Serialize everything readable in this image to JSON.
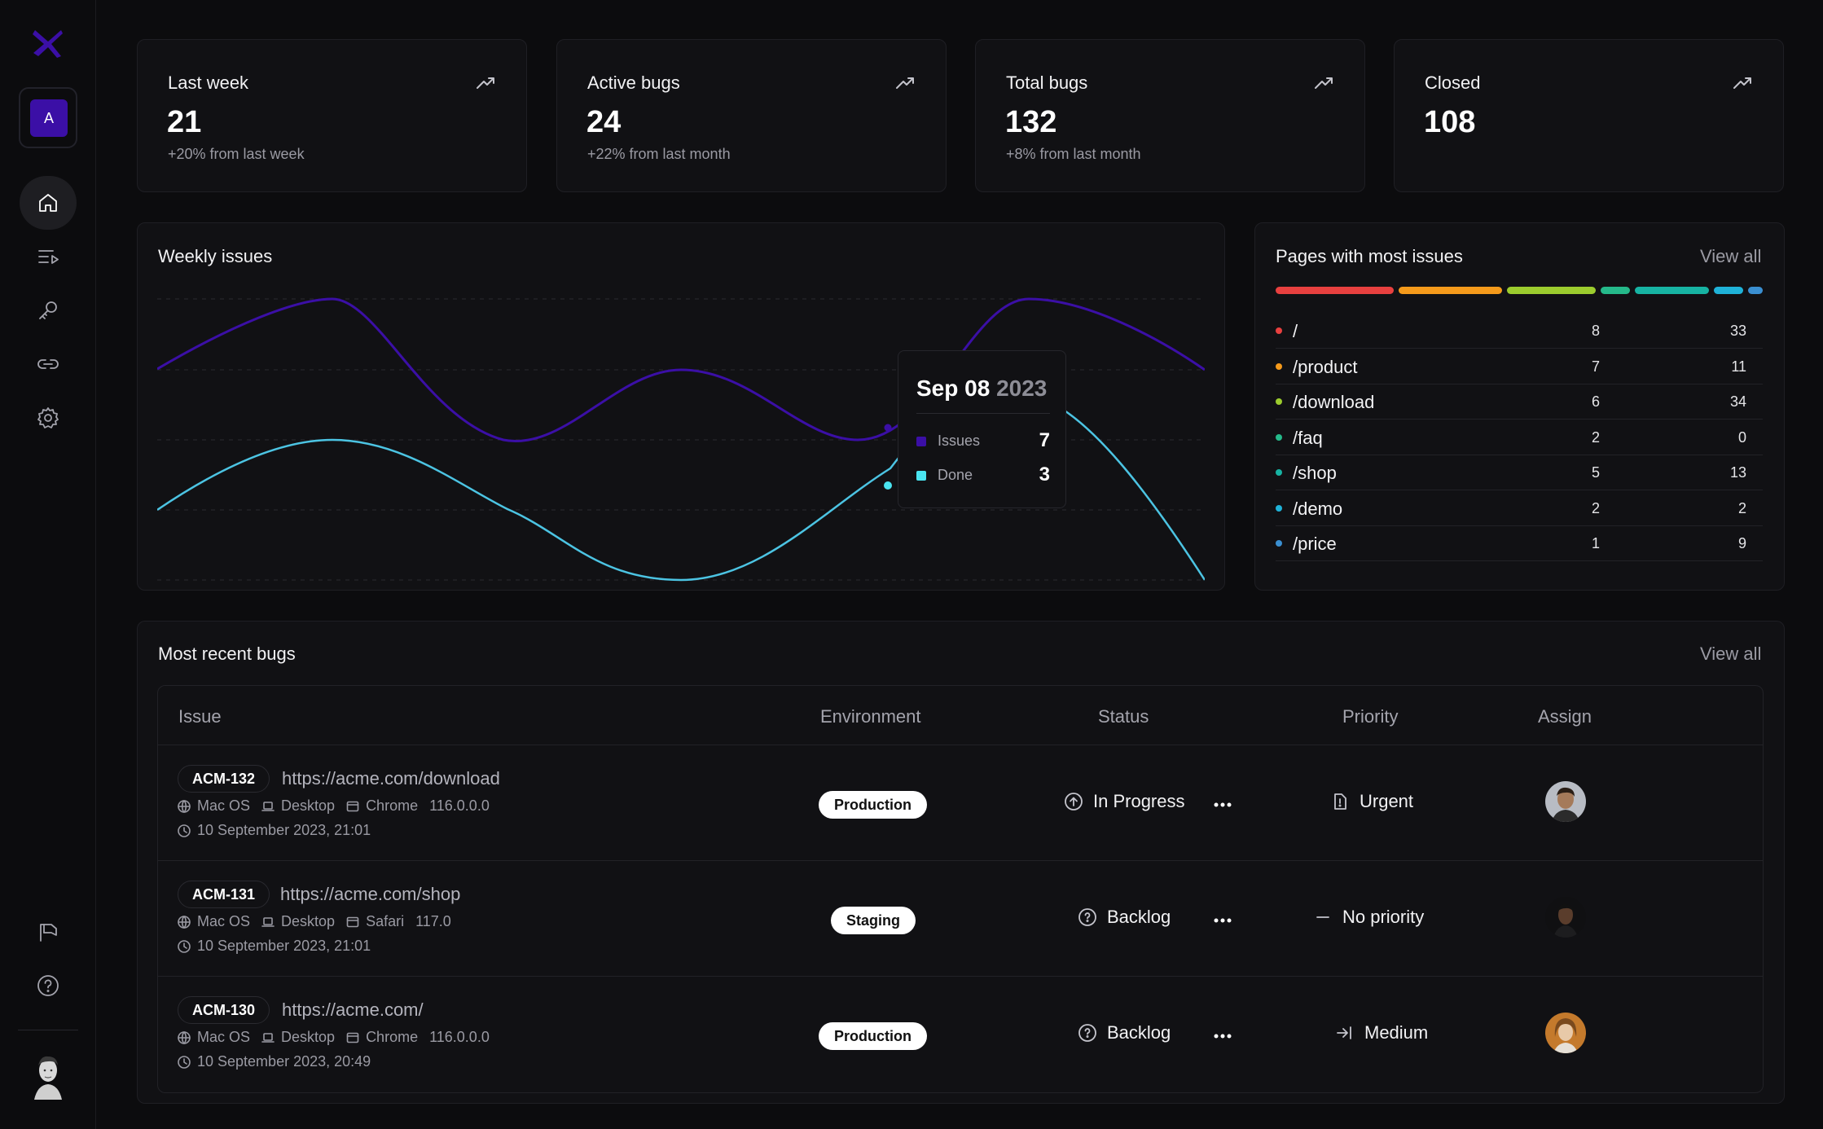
{
  "colors": {
    "accent": "#3b0fa6",
    "issues_line": "#3b0fa6",
    "done_line": "#4cc4e3"
  },
  "sidebar": {
    "workspace_initial": "A",
    "nav": [
      {
        "name": "home-icon",
        "active": true
      },
      {
        "name": "issues-list-icon",
        "active": false
      },
      {
        "name": "key-icon",
        "active": false
      },
      {
        "name": "link-icon",
        "active": false
      },
      {
        "name": "settings-icon",
        "active": false
      }
    ],
    "bottom": [
      {
        "name": "announcement-icon"
      },
      {
        "name": "help-icon"
      }
    ]
  },
  "stats": [
    {
      "title": "Last week",
      "value": "21",
      "sub": "+20% from last week",
      "icon": "trend-up-icon"
    },
    {
      "title": "Active bugs",
      "value": "24",
      "sub": "+22% from last month",
      "icon": "trend-up-icon"
    },
    {
      "title": "Total bugs",
      "value": "132",
      "sub": "+8% from last month",
      "icon": "trend-up-icon"
    },
    {
      "title": "Closed",
      "value": "108",
      "sub": "",
      "icon": "trend-up-icon"
    }
  ],
  "weekly": {
    "title": "Weekly issues",
    "tooltip": {
      "date": "Sep 08",
      "year": "2023",
      "rows": [
        {
          "label": "Issues",
          "value": "7",
          "color": "#3b0fa6"
        },
        {
          "label": "Done",
          "value": "3",
          "color": "#4ae4f0"
        }
      ]
    }
  },
  "pages": {
    "title": "Pages with most issues",
    "view_all": "View all",
    "segments": [
      {
        "color": "#e8403f",
        "share": 0.24
      },
      {
        "color": "#f59a1b",
        "share": 0.21
      },
      {
        "color": "#9ccc2e",
        "share": 0.18
      },
      {
        "color": "#25b98a",
        "share": 0.06
      },
      {
        "color": "#17b3a3",
        "share": 0.15
      },
      {
        "color": "#1fb2d8",
        "share": 0.06
      },
      {
        "color": "#3a8fd1",
        "share": 0.03
      }
    ],
    "rows": [
      {
        "path": "/",
        "a": "8",
        "b": "33",
        "color": "#e8403f"
      },
      {
        "path": "/product",
        "a": "7",
        "b": "11",
        "color": "#f59a1b"
      },
      {
        "path": "/download",
        "a": "6",
        "b": "34",
        "color": "#9ccc2e"
      },
      {
        "path": "/faq",
        "a": "2",
        "b": "0",
        "color": "#25b98a"
      },
      {
        "path": "/shop",
        "a": "5",
        "b": "13",
        "color": "#17b3a3"
      },
      {
        "path": "/demo",
        "a": "2",
        "b": "2",
        "color": "#1fb2d8"
      },
      {
        "path": "/price",
        "a": "1",
        "b": "9",
        "color": "#3a8fd1"
      }
    ]
  },
  "bugs": {
    "title": "Most recent bugs",
    "view_all": "View all",
    "headers": {
      "issue": "Issue",
      "environment": "Environment",
      "status": "Status",
      "priority": "Priority",
      "assign": "Assign"
    },
    "rows": [
      {
        "id": "ACM-132",
        "url": "https://acme.com/download",
        "os": "Mac OS",
        "device": "Desktop",
        "browser": "Chrome",
        "version": "116.0.0.0",
        "time": "10 September 2023, 21:01",
        "env": "Production",
        "status": "In Progress",
        "status_icon": "in-progress-icon",
        "priority": "Urgent",
        "priority_icon": "urgent-icon"
      },
      {
        "id": "ACM-131",
        "url": "https://acme.com/shop",
        "os": "Mac OS",
        "device": "Desktop",
        "browser": "Safari",
        "version": "117.0",
        "time": "10 September 2023, 21:01",
        "env": "Staging",
        "status": "Backlog",
        "status_icon": "backlog-icon",
        "priority": "No priority",
        "priority_icon": "no-priority-icon"
      },
      {
        "id": "ACM-130",
        "url": "https://acme.com/",
        "os": "Mac OS",
        "device": "Desktop",
        "browser": "Chrome",
        "version": "116.0.0.0",
        "time": "10 September 2023, 20:49",
        "env": "Production",
        "status": "Backlog",
        "status_icon": "backlog-icon",
        "priority": "Medium",
        "priority_icon": "medium-priority-icon"
      }
    ]
  }
}
